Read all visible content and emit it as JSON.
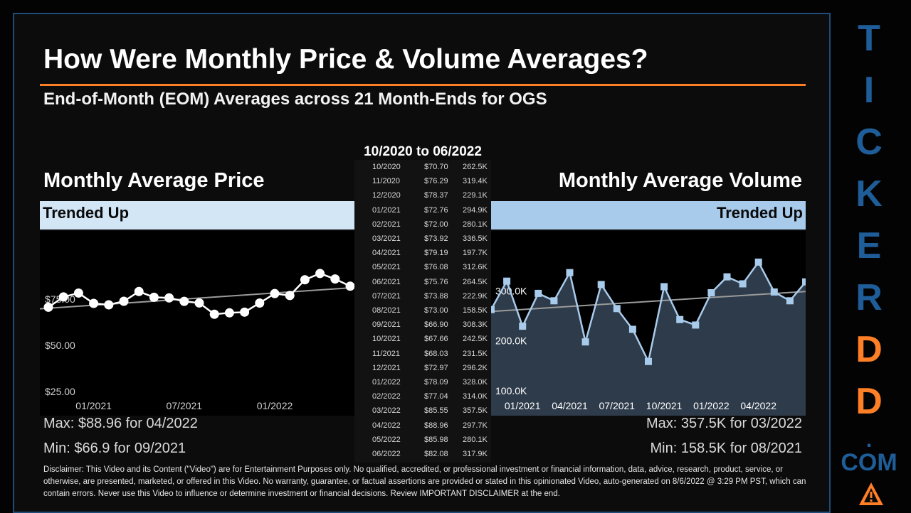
{
  "title": "How Were Monthly Price & Volume Averages?",
  "subtitle": "End-of-Month (EOM) Averages across 21 Month-Ends for OGS",
  "table_heading": "10/2020 to 06/2022",
  "price_section": {
    "title": "Monthly Average Price",
    "trend": "Trended Up",
    "max": "Max: $88.96 for 04/2022",
    "min": "Min: $66.9 for 09/2021"
  },
  "volume_section": {
    "title": "Monthly Average Volume",
    "trend": "Trended Up",
    "max": "Max: 357.5K for 03/2022",
    "min": "Min: 158.5K for 08/2021"
  },
  "table_rows": [
    {
      "date": "10/2020",
      "price": "$70.70",
      "volume": "262.5K"
    },
    {
      "date": "11/2020",
      "price": "$76.29",
      "volume": "319.4K"
    },
    {
      "date": "12/2020",
      "price": "$78.37",
      "volume": "229.1K"
    },
    {
      "date": "01/2021",
      "price": "$72.76",
      "volume": "294.9K"
    },
    {
      "date": "02/2021",
      "price": "$72.00",
      "volume": "280.1K"
    },
    {
      "date": "03/2021",
      "price": "$73.92",
      "volume": "336.5K"
    },
    {
      "date": "04/2021",
      "price": "$79.19",
      "volume": "197.7K"
    },
    {
      "date": "05/2021",
      "price": "$76.08",
      "volume": "312.6K"
    },
    {
      "date": "06/2021",
      "price": "$75.76",
      "volume": "264.5K"
    },
    {
      "date": "07/2021",
      "price": "$73.88",
      "volume": "222.9K"
    },
    {
      "date": "08/2021",
      "price": "$73.00",
      "volume": "158.5K"
    },
    {
      "date": "09/2021",
      "price": "$66.90",
      "volume": "308.3K"
    },
    {
      "date": "10/2021",
      "price": "$67.66",
      "volume": "242.5K"
    },
    {
      "date": "11/2021",
      "price": "$68.03",
      "volume": "231.5K"
    },
    {
      "date": "12/2021",
      "price": "$72.97",
      "volume": "296.2K"
    },
    {
      "date": "01/2022",
      "price": "$78.09",
      "volume": "328.0K"
    },
    {
      "date": "02/2022",
      "price": "$77.04",
      "volume": "314.0K"
    },
    {
      "date": "03/2022",
      "price": "$85.55",
      "volume": "357.5K"
    },
    {
      "date": "04/2022",
      "price": "$88.96",
      "volume": "297.7K"
    },
    {
      "date": "05/2022",
      "price": "$85.98",
      "volume": "280.1K"
    },
    {
      "date": "06/2022",
      "price": "$82.08",
      "volume": "317.9K"
    }
  ],
  "chart_data": [
    {
      "type": "line",
      "title": "Monthly Average Price",
      "x": [
        "10/2020",
        "11/2020",
        "12/2020",
        "01/2021",
        "02/2021",
        "03/2021",
        "04/2021",
        "05/2021",
        "06/2021",
        "07/2021",
        "08/2021",
        "09/2021",
        "10/2021",
        "11/2021",
        "12/2021",
        "01/2022",
        "02/2022",
        "03/2022",
        "04/2022",
        "05/2022",
        "06/2022"
      ],
      "values": [
        70.7,
        76.29,
        78.37,
        72.76,
        72.0,
        73.92,
        79.19,
        76.08,
        75.76,
        73.88,
        73.0,
        66.9,
        67.66,
        68.03,
        72.97,
        78.09,
        77.04,
        85.55,
        88.96,
        85.98,
        82.08
      ],
      "y_ticks": [
        25,
        50,
        75
      ],
      "y_tick_labels": [
        "$25.00",
        "$50.00",
        "$75.00"
      ],
      "x_tick_labels": [
        "01/2021",
        "07/2021",
        "01/2022"
      ],
      "trendline": true,
      "ylim": [
        12,
        112
      ],
      "grid": false
    },
    {
      "type": "area",
      "title": "Monthly Average Volume",
      "x": [
        "10/2020",
        "11/2020",
        "12/2020",
        "01/2021",
        "02/2021",
        "03/2021",
        "04/2021",
        "05/2021",
        "06/2021",
        "07/2021",
        "08/2021",
        "09/2021",
        "10/2021",
        "11/2021",
        "12/2021",
        "01/2022",
        "02/2022",
        "03/2022",
        "04/2022",
        "05/2022",
        "06/2022"
      ],
      "values": [
        262.5,
        319.4,
        229.1,
        294.9,
        280.1,
        336.5,
        197.7,
        312.6,
        264.5,
        222.9,
        158.5,
        308.3,
        242.5,
        231.5,
        296.2,
        328.0,
        314.0,
        357.5,
        297.7,
        280.1,
        317.9
      ],
      "y_ticks": [
        100,
        200,
        300
      ],
      "y_tick_labels": [
        "100.0K",
        "200.0K",
        "300.0K"
      ],
      "x_tick_labels": [
        "01/2021",
        "04/2021",
        "07/2021",
        "10/2021",
        "01/2022",
        "04/2022"
      ],
      "trendline": true,
      "ylim": [
        50,
        420
      ],
      "grid": false
    }
  ],
  "colors": {
    "accent_orange": "#ff7f27",
    "brand_blue": "#1e5d98",
    "brand_orange": "#ff7f27",
    "price_line": "#ffffff",
    "volume_area": "#2e3b4a",
    "volume_line": "#a9cbeb"
  },
  "brand": {
    "letters": [
      "T",
      "I",
      "C",
      "K",
      "E",
      "R",
      "D",
      "D"
    ],
    "dot": ".",
    "com": "COM",
    "logo_icon": "warning-triangle-icon"
  },
  "disclaimer": "Disclaimer: This Video and its Content (\"Video\") are for Entertainment Purposes only. No qualified, accredited, or professional investment or financial information, data, advice, research, product, service, or otherwise, are presented, marketed, or offered in this Video. No warranty, guarantee, or factual assertions are provided or stated in this opinionated Video, auto-generated on 8/6/2022 @ 3:29 PM PST, which can contain errors. Never use this Video to influence or determine investment or financial decisions. Review IMPORTANT DISCLAIMER at the end."
}
